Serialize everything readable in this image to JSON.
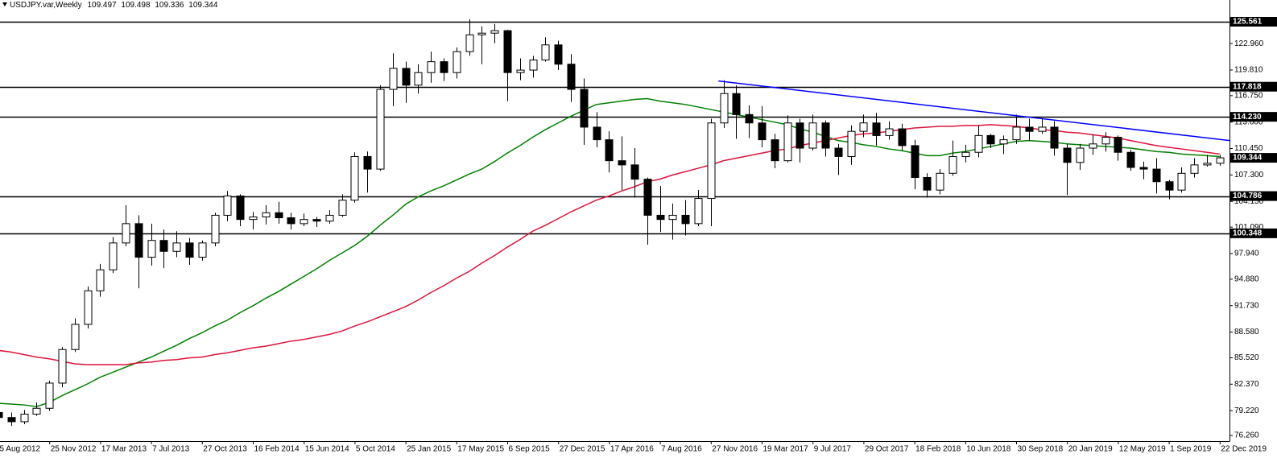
{
  "chart_data": {
    "type": "candlestick",
    "symbol": "USDJPY.var,Weekly",
    "ohlc_last": [
      109.497,
      109.498,
      109.336,
      109.344
    ],
    "categories": [
      "5 Aug 2012",
      null,
      null,
      null,
      "25 Nov 2012",
      null,
      null,
      null,
      "17 Mar 2013",
      null,
      null,
      null,
      "7 Jul 2013",
      null,
      null,
      null,
      "27 Oct 2013",
      null,
      null,
      null,
      "16 Feb 2014",
      null,
      null,
      null,
      "15 Jun 2014",
      null,
      null,
      null,
      "5 Oct 2014",
      null,
      null,
      null,
      "25 Jan 2015",
      null,
      null,
      null,
      "17 May 2015",
      null,
      null,
      null,
      "6 Sep 2015",
      null,
      null,
      null,
      "27 Dec 2015",
      null,
      null,
      null,
      "17 Apr 2016",
      null,
      null,
      null,
      "7 Aug 2016",
      null,
      null,
      null,
      "27 Nov 2016",
      null,
      null,
      null,
      "19 Mar 2017",
      null,
      null,
      null,
      "9 Jul 2017",
      null,
      null,
      null,
      "29 Oct 2017",
      null,
      null,
      null,
      "18 Feb 2018",
      null,
      null,
      null,
      "10 Jun 2018",
      null,
      null,
      null,
      "30 Sep 2018",
      null,
      null,
      null,
      "20 Jan 2019",
      null,
      null,
      null,
      "12 May 2019",
      null,
      null,
      null,
      "1 Sep 2019",
      null,
      null,
      null,
      "22 Dec 2019"
    ],
    "open": [
      79.0,
      78.4,
      77.9,
      78.8,
      79.5,
      82.5,
      86.5,
      89.5,
      93.5,
      96.0,
      99.2,
      101.5,
      97.5,
      99.5,
      98.2,
      99.2,
      97.5,
      99.2,
      102.5,
      104.8,
      102.0,
      102.3,
      102.8,
      102.2,
      101.5,
      102.0,
      101.8,
      102.5,
      104.3,
      109.5,
      108.0,
      117.5,
      120.0,
      118.0,
      119.5,
      120.8,
      119.5,
      122.0,
      124.0,
      124.2,
      124.5,
      119.5,
      119.8,
      121.0,
      122.8,
      120.5,
      117.5,
      113.0,
      111.5,
      109.0,
      108.5,
      106.8,
      102.5,
      102.0,
      102.5,
      101.5,
      104.5,
      113.5,
      117.0,
      114.5,
      113.5,
      111.5,
      109.0,
      113.5,
      110.5,
      113.5,
      110.5,
      109.5,
      112.5,
      113.5,
      112.0,
      112.8,
      110.8,
      107.0,
      105.5,
      107.5,
      109.5,
      110.0,
      112.0,
      111.0,
      111.5,
      113.0,
      112.5,
      113.0,
      110.5,
      108.8,
      110.5,
      111.0,
      111.8,
      110.0,
      108.2,
      108.0,
      106.5,
      105.5,
      107.5,
      108.5,
      108.7
    ],
    "high": [
      79.6,
      79.0,
      79.3,
      80.2,
      82.8,
      86.8,
      90.2,
      94.0,
      96.7,
      99.9,
      103.7,
      102.5,
      101.5,
      100.8,
      100.6,
      99.8,
      99.5,
      102.8,
      105.4,
      105.0,
      102.9,
      103.7,
      104.1,
      102.8,
      102.7,
      102.3,
      103.1,
      105.0,
      110.0,
      110.1,
      118.0,
      121.8,
      120.8,
      120.5,
      122.0,
      121.2,
      122.5,
      125.86,
      125.0,
      125.3,
      124.6,
      121.2,
      121.5,
      123.7,
      123.3,
      121.7,
      118.8,
      114.8,
      112.5,
      111.9,
      110.5,
      107.0,
      106.0,
      103.9,
      104.3,
      105.5,
      114.0,
      118.6,
      118.0,
      115.6,
      115.5,
      112.2,
      114.4,
      114.0,
      114.5,
      113.8,
      111.0,
      113.2,
      114.5,
      114.7,
      113.7,
      113.4,
      111.5,
      107.5,
      108.0,
      111.4,
      110.9,
      113.2,
      112.2,
      112.0,
      114.5,
      114.0,
      114.0,
      113.7,
      111.0,
      111.0,
      112.1,
      112.4,
      112.0,
      110.3,
      108.9,
      109.3,
      106.7,
      108.2,
      109.3,
      109.7,
      109.7
    ],
    "low": [
      78.0,
      77.4,
      77.6,
      78.6,
      79.2,
      82.0,
      86.2,
      89.0,
      92.8,
      95.6,
      98.8,
      93.8,
      96.5,
      96.2,
      97.5,
      96.6,
      97.1,
      98.8,
      101.8,
      101.2,
      100.8,
      101.4,
      101.5,
      100.8,
      101.2,
      101.1,
      101.5,
      102.3,
      104.0,
      105.2,
      107.8,
      115.5,
      115.9,
      117.0,
      118.3,
      118.5,
      118.8,
      121.5,
      120.5,
      123.0,
      116.1,
      118.6,
      118.9,
      120.8,
      119.8,
      116.0,
      110.9,
      110.6,
      107.6,
      105.5,
      104.6,
      99.0,
      100.5,
      99.6,
      100.1,
      101.2,
      101.2,
      112.9,
      111.6,
      111.7,
      110.6,
      108.1,
      108.8,
      108.8,
      110.2,
      109.5,
      107.3,
      108.5,
      111.8,
      110.8,
      111.5,
      110.2,
      105.6,
      104.6,
      105.0,
      107.2,
      108.8,
      109.4,
      110.5,
      109.8,
      111.0,
      111.4,
      112.2,
      109.6,
      104.9,
      107.9,
      109.7,
      110.1,
      109.0,
      107.8,
      106.8,
      105.1,
      104.4,
      105.2,
      107.0,
      108.3,
      108.4
    ],
    "close": [
      78.4,
      77.9,
      78.8,
      79.5,
      82.5,
      86.5,
      89.5,
      93.5,
      96.0,
      99.2,
      101.5,
      97.5,
      99.5,
      98.2,
      99.2,
      97.5,
      99.2,
      102.5,
      104.8,
      102.0,
      102.3,
      102.8,
      102.2,
      101.5,
      102.0,
      101.8,
      102.5,
      104.3,
      109.5,
      108.0,
      117.5,
      120.0,
      118.0,
      119.5,
      120.8,
      119.5,
      122.0,
      124.0,
      124.2,
      124.5,
      119.5,
      119.8,
      121.0,
      122.8,
      120.5,
      117.5,
      113.0,
      111.5,
      109.0,
      108.5,
      106.8,
      102.5,
      102.0,
      102.5,
      101.5,
      104.5,
      113.5,
      117.0,
      114.5,
      113.5,
      111.5,
      109.0,
      113.5,
      110.5,
      113.5,
      110.5,
      109.5,
      112.5,
      113.5,
      112.0,
      112.8,
      110.8,
      107.0,
      105.5,
      107.5,
      109.5,
      110.0,
      112.0,
      111.0,
      111.5,
      113.0,
      112.5,
      113.0,
      110.5,
      108.8,
      110.5,
      111.0,
      111.8,
      110.0,
      108.2,
      108.0,
      106.5,
      105.5,
      107.5,
      108.5,
      108.7,
      109.344
    ],
    "series": [
      {
        "color": "#008000",
        "values": [
          80.1,
          80.0,
          79.9,
          79.7,
          80.2,
          81.0,
          81.7,
          82.4,
          83.2,
          83.8,
          84.4,
          85.0,
          85.6,
          86.3,
          87.0,
          87.8,
          88.5,
          89.3,
          90.0,
          90.9,
          91.7,
          92.6,
          93.4,
          94.3,
          95.2,
          96.1,
          97.1,
          98.0,
          98.9,
          100.0,
          101.3,
          102.5,
          103.8,
          104.7,
          105.4,
          106.0,
          106.7,
          107.4,
          108.0,
          108.9,
          109.9,
          110.8,
          111.8,
          112.7,
          113.5,
          114.3,
          115.0,
          115.7,
          115.9,
          116.1,
          116.3,
          116.4,
          116.1,
          115.9,
          115.7,
          115.4,
          115.1,
          114.8,
          114.5,
          114.2,
          113.9,
          113.6,
          113.3,
          112.8,
          112.4,
          111.9,
          111.4,
          111.2,
          110.9,
          110.7,
          110.4,
          110.2,
          109.9,
          109.6,
          109.6,
          109.9,
          110.1,
          110.4,
          110.7,
          111.0,
          111.3,
          111.4,
          111.3,
          111.2,
          111.0,
          110.9,
          110.8,
          110.7,
          110.6,
          110.5,
          110.3,
          110.1,
          110.0,
          109.8,
          109.7,
          109.6,
          109.5
        ]
      },
      {
        "color": "#dc143c",
        "values": [
          86.4,
          86.2,
          85.9,
          85.6,
          85.4,
          85.1,
          84.8,
          84.7,
          84.7,
          84.7,
          84.7,
          84.9,
          85.0,
          85.2,
          85.3,
          85.5,
          85.6,
          85.9,
          86.1,
          86.4,
          86.7,
          86.9,
          87.2,
          87.5,
          87.7,
          88.0,
          88.3,
          88.7,
          89.3,
          89.8,
          90.4,
          91.0,
          91.6,
          92.4,
          93.3,
          94.1,
          95.0,
          95.8,
          96.8,
          97.7,
          98.7,
          99.6,
          100.6,
          101.3,
          102.1,
          102.9,
          103.6,
          104.3,
          104.8,
          105.4,
          105.9,
          106.5,
          106.8,
          107.3,
          107.7,
          108.1,
          108.5,
          109.0,
          109.3,
          109.6,
          109.9,
          110.2,
          110.4,
          110.8,
          111.1,
          111.4,
          111.7,
          112.0,
          112.2,
          112.3,
          112.5,
          112.7,
          112.9,
          113.0,
          113.1,
          113.1,
          113.2,
          113.2,
          113.3,
          113.2,
          113.1,
          112.9,
          112.7,
          112.6,
          112.4,
          112.3,
          112.1,
          111.9,
          111.7,
          111.4,
          111.1,
          110.8,
          110.6,
          110.4,
          110.2,
          110.0,
          109.8
        ]
      }
    ],
    "trend_line": {
      "color": "#0000ff",
      "x": [
        56.6,
        96.8
      ],
      "values": [
        118.5,
        111.4
      ]
    },
    "levels": [
      125.561,
      117.818,
      {
        "value": 114.23,
        "label": "114.230"
      },
      104.786,
      100.348
    ],
    "ylim": [
      75.59,
      128.15
    ],
    "yticks": [
      {
        "value": 76.26,
        "label": "76.260"
      },
      {
        "value": 79.22,
        "label": "79.220"
      },
      {
        "value": 82.37,
        "label": "82.370"
      },
      {
        "value": 85.52,
        "label": "85.520"
      },
      {
        "value": 88.58,
        "label": "88.580"
      },
      {
        "value": 91.73,
        "label": "91.730"
      },
      {
        "value": 94.88,
        "label": "94.880"
      },
      {
        "value": 97.94,
        "label": "97.940"
      },
      {
        "value": 101.09,
        "label": "101.090"
      },
      {
        "value": 104.15,
        "label": "104.150"
      },
      {
        "value": 107.3,
        "label": "107.300"
      },
      {
        "value": 110.45,
        "label": "110.450"
      },
      {
        "value": 113.6,
        "label": "113.600"
      },
      {
        "value": 116.75,
        "label": "116.750"
      },
      {
        "value": 119.81,
        "label": "119.810"
      },
      {
        "value": 122.96,
        "label": "122.960"
      }
    ],
    "grid": false
  }
}
